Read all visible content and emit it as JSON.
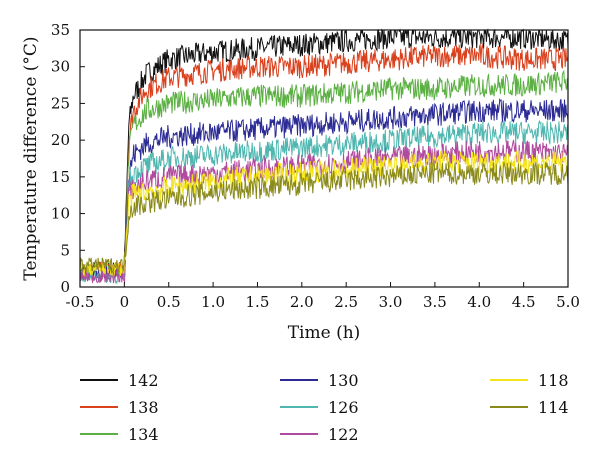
{
  "chart_data": {
    "type": "line",
    "title": "",
    "xlabel": "Time (h)",
    "ylabel": "Temperature difference (°C)",
    "xlim": [
      -0.5,
      5.0
    ],
    "ylim": [
      0,
      35
    ],
    "x_ticks": [
      "-0.5",
      "0",
      "0.5",
      "1.0",
      "1.5",
      "2.0",
      "2.5",
      "3.0",
      "3.5",
      "4.0",
      "4.5",
      "5.0"
    ],
    "y_ticks": [
      "0",
      "5",
      "10",
      "15",
      "20",
      "25",
      "30",
      "35"
    ],
    "grid": false,
    "legend_position": "bottom",
    "x": [
      -0.5,
      -0.25,
      0,
      0.05,
      0.1,
      0.25,
      0.5,
      1.0,
      1.5,
      2.0,
      2.5,
      3.0,
      3.5,
      4.0,
      4.5,
      5.0
    ],
    "series": [
      {
        "name": "142",
        "color": "#111111",
        "values": [
          2.5,
          2.5,
          2.5,
          22,
          26,
          29,
          31,
          32,
          32.5,
          33,
          33.5,
          34,
          34,
          34,
          34,
          33.5
        ]
      },
      {
        "name": "138",
        "color": "#d9401c",
        "values": [
          2.5,
          2.5,
          2.5,
          20,
          24,
          27,
          28.5,
          29.5,
          30,
          30,
          30.5,
          31,
          31.5,
          31.5,
          31,
          31
        ]
      },
      {
        "name": "134",
        "color": "#5cb043",
        "values": [
          2,
          2,
          2,
          18,
          22,
          24,
          25,
          25.5,
          26,
          26,
          26.5,
          27,
          27,
          27.5,
          27.5,
          28
        ]
      },
      {
        "name": "130",
        "color": "#2c2b95",
        "values": [
          2,
          2,
          2,
          15,
          18,
          19.5,
          20.5,
          21,
          21.5,
          22,
          22.5,
          23,
          23.5,
          24,
          24,
          24
        ]
      },
      {
        "name": "126",
        "color": "#4fb7b0",
        "values": [
          1.5,
          1.5,
          1.5,
          14,
          15.5,
          16.5,
          17.5,
          18,
          18.5,
          19,
          19.5,
          20,
          20.5,
          21,
          21,
          21
        ]
      },
      {
        "name": "122",
        "color": "#b04a9e",
        "values": [
          1.5,
          1.5,
          1.5,
          12.5,
          13.5,
          14.5,
          15,
          15.5,
          16,
          16.5,
          17,
          17.5,
          18,
          18.5,
          18.5,
          18
        ]
      },
      {
        "name": "118",
        "color": "#f4e316",
        "values": [
          2.5,
          2.5,
          2.5,
          11.5,
          12.5,
          13,
          13.5,
          14.5,
          15,
          15.5,
          16,
          16.5,
          17,
          17,
          17,
          17
        ]
      },
      {
        "name": "114",
        "color": "#8a8a1c",
        "values": [
          3,
          3,
          3,
          10,
          11,
          11.5,
          12,
          13,
          13.5,
          14,
          14.5,
          15,
          15.5,
          15.5,
          15.5,
          15.5
        ]
      }
    ]
  }
}
